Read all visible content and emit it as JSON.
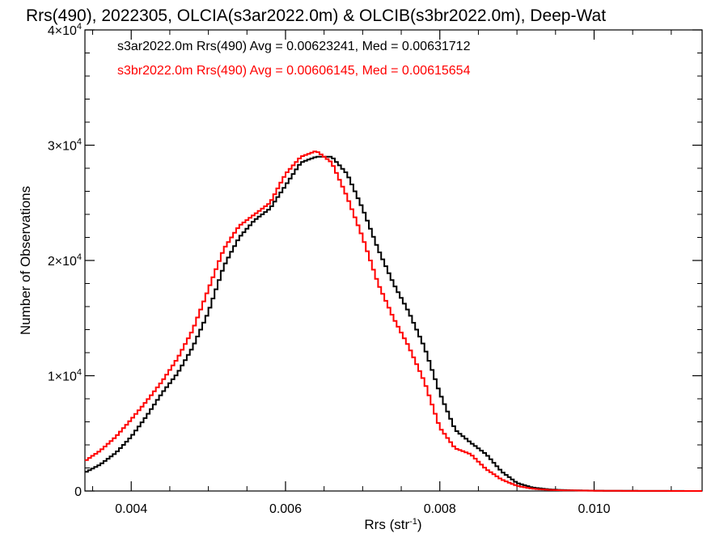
{
  "chart_data": {
    "type": "line",
    "title": "Rrs(490), 2022305, OLCIA(s3ar2022.0m) & OLCIB(s3br2022.0m), Deep-Wat",
    "xlabel": "Rrs (str",
    "xlabel_exp": "-1",
    "xlabel_close": ")",
    "ylabel": "Number of Observations",
    "xlim": [
      0.0034,
      0.0114
    ],
    "ylim": [
      0,
      40000
    ],
    "x_ticks": [
      {
        "value": 0.004,
        "label": "0.004"
      },
      {
        "value": 0.006,
        "label": "0.006"
      },
      {
        "value": 0.008,
        "label": "0.008"
      },
      {
        "value": 0.01,
        "label": "0.010"
      }
    ],
    "y_ticks": [
      {
        "value": 0,
        "mant": "0",
        "exp": ""
      },
      {
        "value": 10000,
        "mant": "1×10",
        "exp": "4"
      },
      {
        "value": 20000,
        "mant": "2×10",
        "exp": "4"
      },
      {
        "value": 30000,
        "mant": "3×10",
        "exp": "4"
      },
      {
        "value": 40000,
        "mant": "4×10",
        "exp": "4"
      }
    ],
    "grid": false,
    "legend_position": "top-left",
    "series": [
      {
        "name": "s3ar2022.0m Rrs(490) Avg = 0.00623241, Med = 0.00631712",
        "color": "#000000",
        "x": [
          0.0034,
          0.0036,
          0.0038,
          0.004,
          0.0042,
          0.0044,
          0.0046,
          0.0048,
          0.005,
          0.0052,
          0.0054,
          0.0056,
          0.0058,
          0.006,
          0.0062,
          0.0064,
          0.0066,
          0.0068,
          0.007,
          0.0072,
          0.0074,
          0.0076,
          0.0078,
          0.008,
          0.0082,
          0.0084,
          0.0086,
          0.0088,
          0.009,
          0.0092,
          0.0094,
          0.0096,
          0.0098,
          0.01,
          0.0102,
          0.0104,
          0.0106,
          0.0108,
          0.011,
          0.0112,
          0.0114
        ],
        "y": [
          1600,
          2300,
          3300,
          4700,
          6500,
          8500,
          10200,
          12500,
          15500,
          19500,
          22000,
          23500,
          24500,
          26500,
          28500,
          29000,
          29000,
          27500,
          24500,
          21000,
          18000,
          15500,
          12500,
          8500,
          5300,
          4200,
          3200,
          1700,
          700,
          300,
          150,
          80,
          50,
          30,
          20,
          15,
          10,
          8,
          5,
          3,
          2
        ]
      },
      {
        "name": "s3br2022.0m Rrs(490) Avg = 0.00606145, Med = 0.00615654",
        "color": "#ff0000",
        "x": [
          0.0034,
          0.0036,
          0.0038,
          0.004,
          0.0042,
          0.0044,
          0.0046,
          0.0048,
          0.005,
          0.0052,
          0.0054,
          0.0056,
          0.0058,
          0.006,
          0.0062,
          0.0064,
          0.0066,
          0.0068,
          0.007,
          0.0072,
          0.0074,
          0.0076,
          0.0078,
          0.008,
          0.0082,
          0.0084,
          0.0086,
          0.0088,
          0.009,
          0.0092,
          0.0094,
          0.0096,
          0.0098,
          0.01,
          0.0102,
          0.0104,
          0.0106,
          0.0108,
          0.011,
          0.0112,
          0.0114
        ],
        "y": [
          2600,
          3500,
          4700,
          6200,
          7800,
          9500,
          11500,
          14000,
          17500,
          21000,
          23000,
          24000,
          25000,
          27500,
          29000,
          29500,
          28500,
          25500,
          22000,
          18000,
          15000,
          12500,
          9500,
          5500,
          3700,
          3200,
          1900,
          1000,
          450,
          200,
          100,
          60,
          40,
          25,
          15,
          10,
          8,
          5,
          3,
          2,
          1
        ]
      }
    ]
  }
}
